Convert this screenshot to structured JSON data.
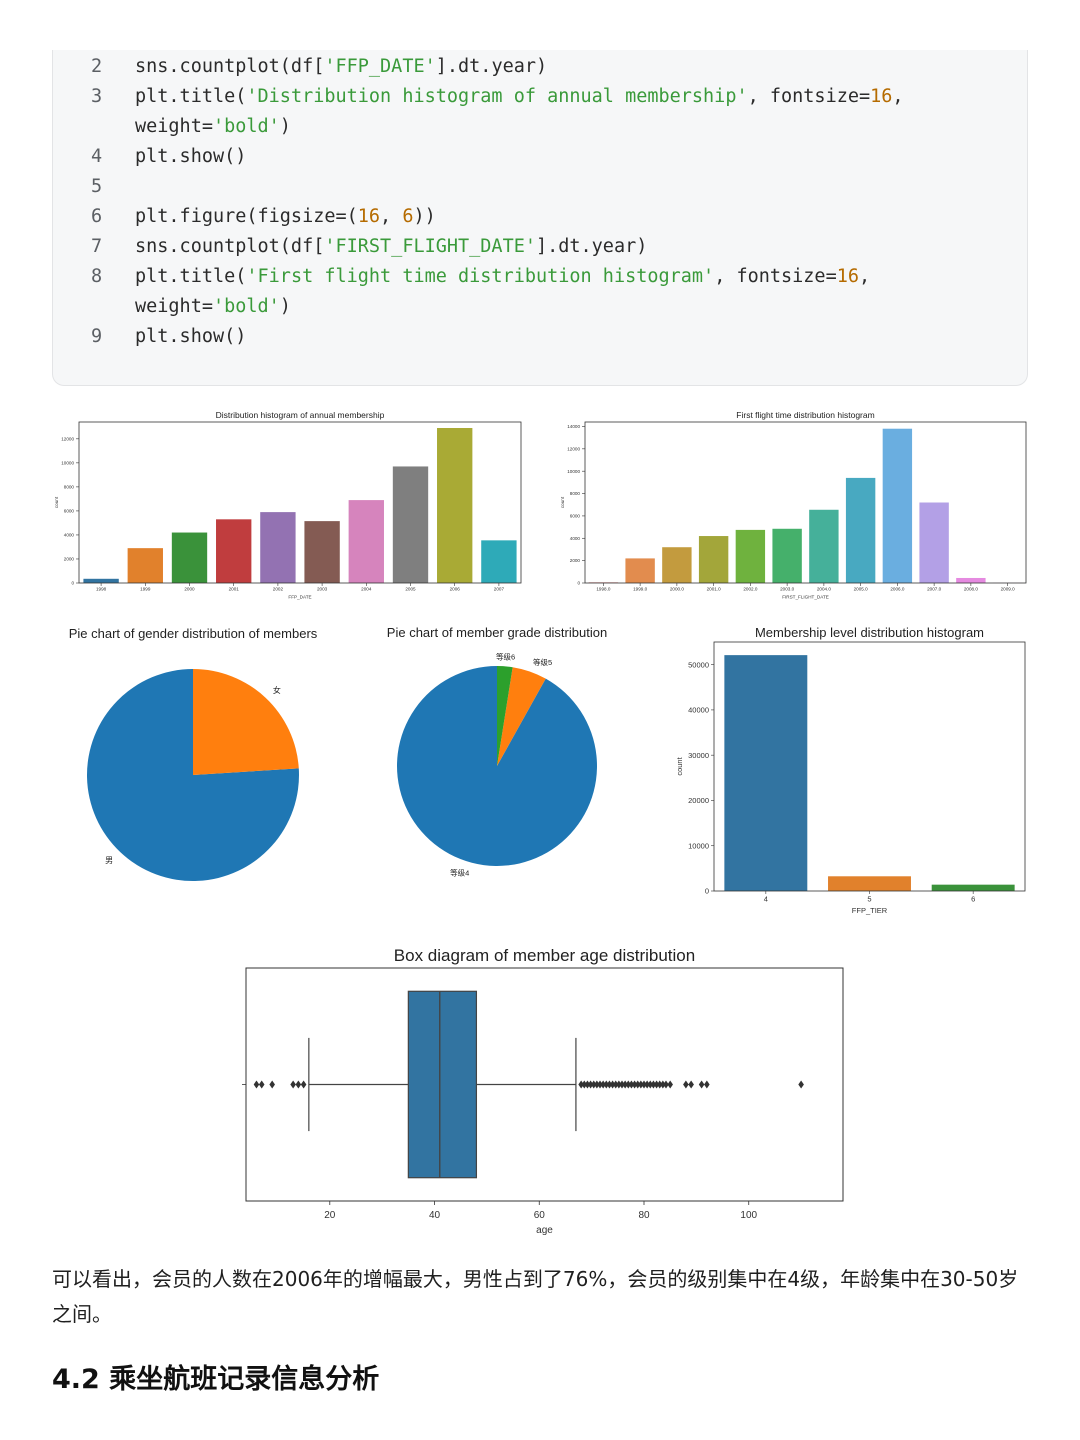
{
  "code": {
    "lines": [
      {
        "n": "2",
        "parts": [
          [
            "sns.countplot(df[",
            ""
          ],
          [
            "'FFP_DATE'",
            "str"
          ],
          [
            "].dt.year)",
            ""
          ]
        ]
      },
      {
        "n": "3",
        "parts": [
          [
            "plt.title(",
            ""
          ],
          [
            "'Distribution histogram of annual membership'",
            "str"
          ],
          [
            ", fontsize=",
            ""
          ],
          [
            "16",
            "num"
          ],
          [
            ",",
            ""
          ]
        ]
      },
      {
        "n": "",
        "parts": [
          [
            "weight=",
            ""
          ],
          [
            "'bold'",
            "str"
          ],
          [
            ")",
            ""
          ]
        ]
      },
      {
        "n": "4",
        "parts": [
          [
            "plt.show()",
            ""
          ]
        ]
      },
      {
        "n": "5",
        "parts": []
      },
      {
        "n": "6",
        "parts": [
          [
            "plt.figure(figsize=(",
            ""
          ],
          [
            "16",
            "num"
          ],
          [
            ", ",
            ""
          ],
          [
            "6",
            "num"
          ],
          [
            "))",
            ""
          ]
        ]
      },
      {
        "n": "7",
        "parts": [
          [
            "sns.countplot(df[",
            ""
          ],
          [
            "'FIRST_FLIGHT_DATE'",
            "str"
          ],
          [
            "].dt.year)",
            ""
          ]
        ]
      },
      {
        "n": "8",
        "parts": [
          [
            "plt.title(",
            ""
          ],
          [
            "'First flight time distribution histogram'",
            "str"
          ],
          [
            ", fontsize=",
            ""
          ],
          [
            "16",
            "num"
          ],
          [
            ",",
            ""
          ]
        ]
      },
      {
        "n": "",
        "parts": [
          [
            "weight=",
            ""
          ],
          [
            "'bold'",
            "str"
          ],
          [
            ")",
            ""
          ]
        ]
      },
      {
        "n": "9",
        "parts": [
          [
            "plt.show()",
            ""
          ]
        ]
      }
    ]
  },
  "summary_text": "可以看出，会员的人数在2006年的增幅最大，男性占到了76%，会员的级别集中在4级，年龄集中在30-50岁之间。",
  "section_heading": "4.2 乘坐航班记录信息分析",
  "chart_data": [
    {
      "id": "annual-membership",
      "type": "bar",
      "title": "Distribution histogram of annual membership",
      "xlabel": "FFP_DATE",
      "ylabel": "count",
      "categories": [
        "1998",
        "1999",
        "2000",
        "2001",
        "2002",
        "2003",
        "2004",
        "2005",
        "2006",
        "2007"
      ],
      "values": [
        350,
        2900,
        4200,
        5300,
        5900,
        5150,
        6900,
        9700,
        12900,
        3550
      ],
      "colors": [
        "#3274a1",
        "#e1812c",
        "#3a923a",
        "#c03d3e",
        "#9372b2",
        "#845b53",
        "#d684bd",
        "#7f7f7f",
        "#a9aa35",
        "#2eaab8"
      ],
      "ylim": [
        0,
        13400
      ],
      "yticks": [
        0,
        2000,
        4000,
        6000,
        8000,
        10000,
        12000
      ]
    },
    {
      "id": "first-flight",
      "type": "bar",
      "title": "First flight time distribution histogram",
      "xlabel": "FIRST_FLIGHT_DATE",
      "ylabel": "count",
      "categories": [
        "1998.0",
        "1999.0",
        "2000.0",
        "2001.0",
        "2002.0",
        "2003.0",
        "2004.0",
        "2005.0",
        "2006.0",
        "2007.0",
        "2008.0",
        "2009.0"
      ],
      "values": [
        60,
        2200,
        3200,
        4200,
        4750,
        4850,
        6550,
        9400,
        13800,
        7200,
        450,
        10
      ],
      "colors": [
        "#e58b8b",
        "#e28c4e",
        "#c39b3e",
        "#a3a63a",
        "#6fb23e",
        "#45b06b",
        "#45b09a",
        "#48a9c1",
        "#6aaee0",
        "#b3a0e6",
        "#e58ae0",
        "#e88ab5"
      ],
      "ylim": [
        0,
        14400
      ],
      "yticks": [
        0,
        2000,
        4000,
        6000,
        8000,
        10000,
        12000,
        14000
      ]
    },
    {
      "id": "gender-pie",
      "type": "pie",
      "title": "Pie chart of gender distribution of members",
      "labels": [
        "男",
        "女"
      ],
      "values": [
        76,
        24
      ],
      "colors": [
        "#1f77b4",
        "#ff7f0e"
      ]
    },
    {
      "id": "grade-pie",
      "type": "pie",
      "title": "Pie chart of member grade distribution",
      "labels": [
        "等级4",
        "等级5",
        "等级6"
      ],
      "values": [
        91.9,
        5.6,
        2.5
      ],
      "colors": [
        "#1f77b4",
        "#ff7f0e",
        "#2ca02c"
      ]
    },
    {
      "id": "level-bar",
      "type": "bar",
      "title": "Membership level distribution histogram",
      "xlabel": "FFP_TIER",
      "ylabel": "count",
      "categories": [
        "4",
        "5",
        "6"
      ],
      "values": [
        52100,
        3250,
        1400
      ],
      "colors": [
        "#3274a1",
        "#e1812c",
        "#3a923a"
      ],
      "ylim": [
        0,
        55000
      ],
      "yticks": [
        0,
        10000,
        20000,
        30000,
        40000,
        50000
      ]
    },
    {
      "id": "age-box",
      "type": "box",
      "title": "Box diagram of member age distribution",
      "xlabel": "age",
      "xlim": [
        4,
        118
      ],
      "xticks": [
        20,
        40,
        60,
        80,
        100
      ],
      "q1": 35,
      "median": 41,
      "q3": 48,
      "whisker_low": 16,
      "whisker_high": 67,
      "outliers": [
        6,
        7,
        9,
        13,
        14,
        15,
        68,
        68.6,
        69.2,
        69.8,
        70.4,
        71,
        71.6,
        72.2,
        72.8,
        73.4,
        74,
        74.6,
        75.2,
        75.8,
        76.4,
        77,
        77.6,
        78.2,
        78.8,
        79.4,
        80,
        80.6,
        81.2,
        81.8,
        82.4,
        83,
        83.6,
        84.2,
        85,
        88,
        89,
        91,
        92,
        110
      ],
      "color": "#3274a1"
    }
  ]
}
